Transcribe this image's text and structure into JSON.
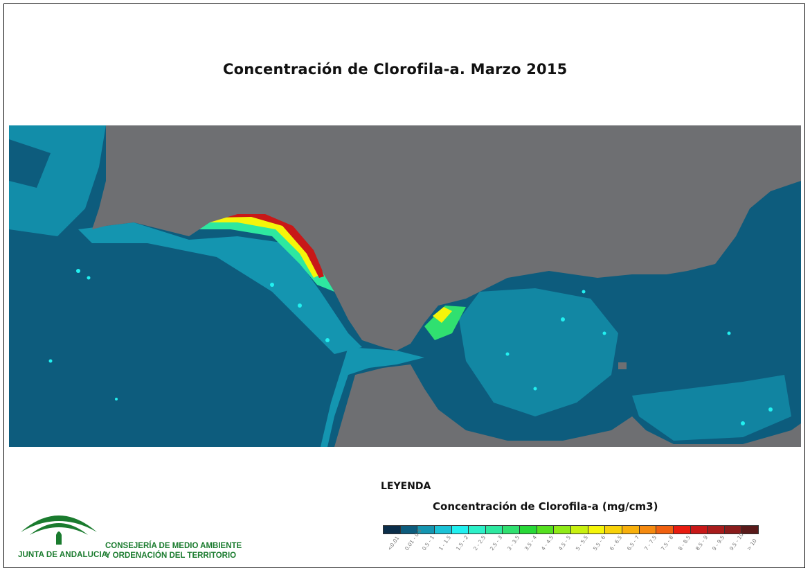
{
  "title": "Concentración de Clorofila-a. Marzo 2015",
  "legend": {
    "heading": "LEYENDA",
    "subtitle": "Concentración de Clorofila-a (mg/cm3)",
    "classes": [
      {
        "label": "<0.01",
        "color": "#0b2e4a"
      },
      {
        "label": "0.01 - 0.5",
        "color": "#0d5c7d"
      },
      {
        "label": "0.5 - 1",
        "color": "#1495b0"
      },
      {
        "label": "1 - 1.5",
        "color": "#1cc2d6"
      },
      {
        "label": "1.5 - 2",
        "color": "#22f0f0"
      },
      {
        "label": "2 - 2.5",
        "color": "#2df0c8"
      },
      {
        "label": "2.5 - 3",
        "color": "#2ee8a0"
      },
      {
        "label": "3 - 3.5",
        "color": "#30e070"
      },
      {
        "label": "3.5 - 4",
        "color": "#28d838"
      },
      {
        "label": "4 - 4.5",
        "color": "#55e020"
      },
      {
        "label": "4.5 - 5",
        "color": "#90ea18"
      },
      {
        "label": "5 - 5.5",
        "color": "#c8f010"
      },
      {
        "label": "5.5 - 6",
        "color": "#f5f50a"
      },
      {
        "label": "6 - 6.5",
        "color": "#f8d20a"
      },
      {
        "label": "6.5 - 7",
        "color": "#f8b00c"
      },
      {
        "label": "7 - 7.5",
        "color": "#f58a10"
      },
      {
        "label": "7.5 - 8",
        "color": "#f06010"
      },
      {
        "label": "8 - 8.5",
        "color": "#e81c10"
      },
      {
        "label": "8.5 - 9",
        "color": "#c81818"
      },
      {
        "label": "9 - 9.5",
        "color": "#a81c1c"
      },
      {
        "label": "9.5 - 10",
        "color": "#8a1c1c"
      },
      {
        "label": "> 10",
        "color": "#5a1a1a"
      }
    ]
  },
  "logo": {
    "org": "JUNTA DE ANDALUCIA",
    "dept_line1": "CONSEJERÍA DE MEDIO AMBIENTE",
    "dept_line2": "Y ORDENACIÓN DEL TERRITORIO",
    "color": "#1a7b2e"
  },
  "colors": {
    "land": "#6e6f72",
    "deep_water": "#0d5c7d",
    "mid_water": "#1495b0"
  }
}
